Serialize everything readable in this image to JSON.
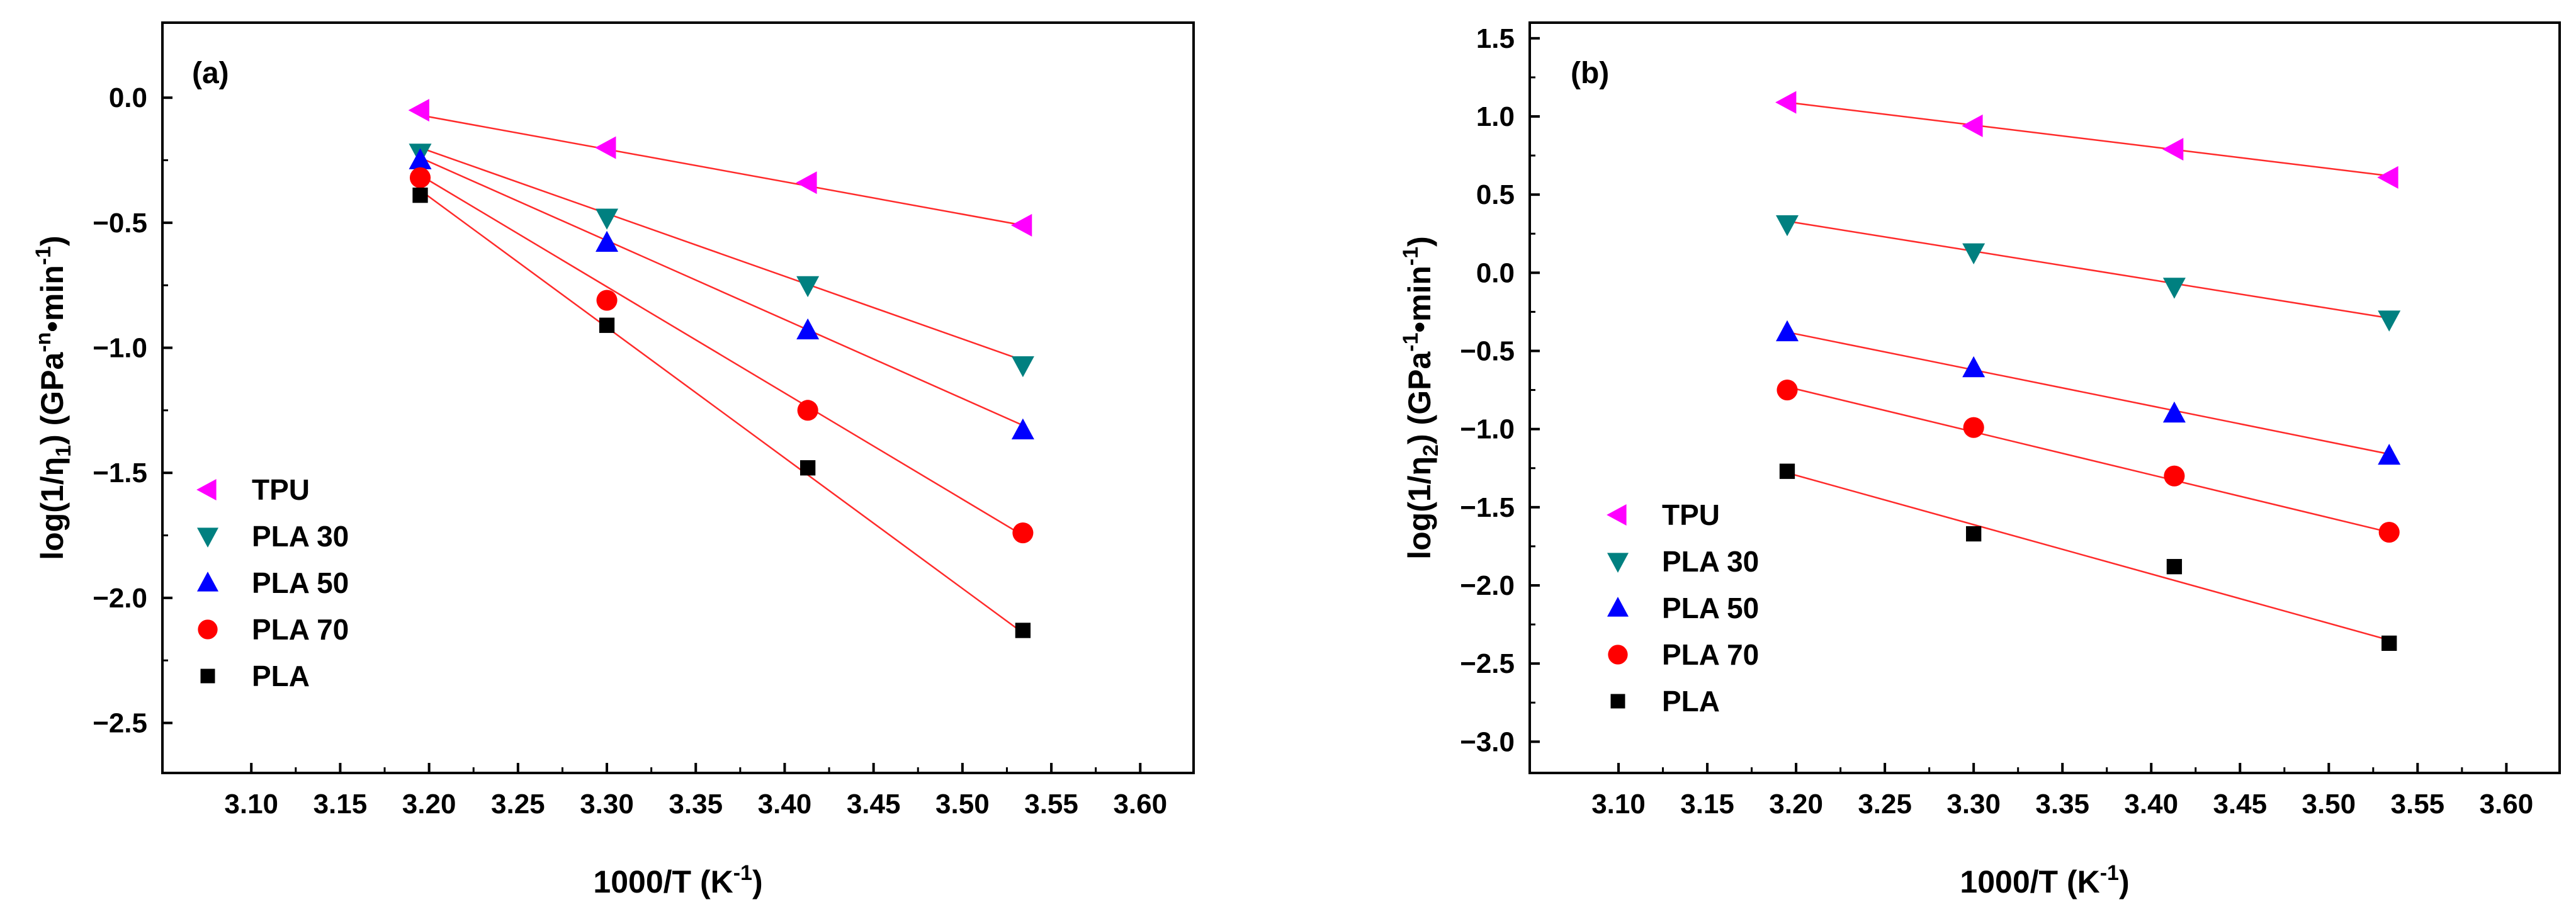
{
  "chart_data": [
    {
      "type": "scatter",
      "panel_label": "(a)",
      "xlabel": "1000/T (K-1)",
      "xlabel_main": "1000/T (K",
      "xlabel_sup": "-1",
      "xlabel_end": ")",
      "ylabel": "log(1/η1) (GPa-n•min-1)",
      "ylabel_main": "log(1/η",
      "ylabel_sub": "1",
      "ylabel_mid": ")  (GPa",
      "ylabel_sup1": "-n",
      "ylabel_mid2": "•min",
      "ylabel_sup2": "-1",
      "ylabel_end": ")",
      "xlim": [
        3.05,
        3.63
      ],
      "ylim": [
        -2.7,
        0.3
      ],
      "xticks": [
        3.1,
        3.15,
        3.2,
        3.25,
        3.3,
        3.35,
        3.4,
        3.45,
        3.5,
        3.55,
        3.6
      ],
      "xtick_labels": [
        "3.10",
        "3.15",
        "3.20",
        "3.25",
        "3.30",
        "3.35",
        "3.40",
        "3.45",
        "3.50",
        "3.55",
        "3.60"
      ],
      "yticks": [
        0.0,
        -0.5,
        -1.0,
        -1.5,
        -2.0,
        -2.5
      ],
      "ytick_labels": [
        "0.0",
        "−0.5",
        "−1.0",
        "−1.5",
        "−2.0",
        "−2.5"
      ],
      "legend_position": "lower-left",
      "x": [
        3.195,
        3.3,
        3.413,
        3.534
      ],
      "series": [
        {
          "name": "TPU",
          "marker": "triangle-left",
          "color": "#ff00ff",
          "values": [
            -0.05,
            -0.2,
            -0.34,
            -0.51
          ],
          "fit": [
            -0.07,
            -0.51
          ]
        },
        {
          "name": "PLA 30",
          "marker": "triangle-down",
          "color": "#008080",
          "values": [
            -0.22,
            -0.48,
            -0.75,
            -1.07
          ],
          "fit": [
            -0.2,
            -1.05
          ]
        },
        {
          "name": "PLA 50",
          "marker": "triangle-up",
          "color": "#0000ff",
          "values": [
            -0.25,
            -0.58,
            -0.93,
            -1.33
          ],
          "fit": [
            -0.24,
            -1.31
          ]
        },
        {
          "name": "PLA 70",
          "marker": "circle",
          "color": "#ff0000",
          "values": [
            -0.32,
            -0.81,
            -1.25,
            -1.74
          ],
          "fit": [
            -0.31,
            -1.75
          ]
        },
        {
          "name": "PLA",
          "marker": "square",
          "color": "#000000",
          "values": [
            -0.39,
            -0.91,
            -1.48,
            -2.13
          ],
          "fit": [
            -0.37,
            -2.14
          ]
        }
      ]
    },
    {
      "type": "scatter",
      "panel_label": "(b)",
      "xlabel": "1000/T (K-1)",
      "xlabel_main": "1000/T (K",
      "xlabel_sup": "-1",
      "xlabel_end": ")",
      "ylabel": "log(1/η2) (GPa-1•min-1)",
      "ylabel_main": "log(1/η",
      "ylabel_sub": "2",
      "ylabel_mid": ")  (GPa",
      "ylabel_sup1": "-1",
      "ylabel_mid2": "•min",
      "ylabel_sup2": "-1",
      "ylabel_end": ")",
      "xlim": [
        3.05,
        3.63
      ],
      "ylim": [
        -3.2,
        1.6
      ],
      "xticks": [
        3.1,
        3.15,
        3.2,
        3.25,
        3.3,
        3.35,
        3.4,
        3.45,
        3.5,
        3.55,
        3.6
      ],
      "xtick_labels": [
        "3.10",
        "3.15",
        "3.20",
        "3.25",
        "3.30",
        "3.35",
        "3.40",
        "3.45",
        "3.50",
        "3.55",
        "3.60"
      ],
      "yticks": [
        1.5,
        1.0,
        0.5,
        0.0,
        -0.5,
        -1.0,
        -1.5,
        -2.0,
        -2.5,
        -3.0
      ],
      "ytick_labels": [
        "1.5",
        "1.0",
        "0.5",
        "0.0",
        "−0.5",
        "−1.0",
        "−1.5",
        "−2.0",
        "−2.5",
        "−3.0"
      ],
      "legend_position": "lower-left",
      "x": [
        3.195,
        3.3,
        3.413,
        3.534
      ],
      "series": [
        {
          "name": "TPU",
          "marker": "triangle-left",
          "color": "#ff00ff",
          "values": [
            1.09,
            0.94,
            0.79,
            0.61
          ],
          "fit": [
            1.09,
            0.62
          ]
        },
        {
          "name": "PLA 30",
          "marker": "triangle-down",
          "color": "#008080",
          "values": [
            0.31,
            0.13,
            -0.09,
            -0.3
          ],
          "fit": [
            0.33,
            -0.29
          ]
        },
        {
          "name": "PLA 50",
          "marker": "triangle-up",
          "color": "#0000ff",
          "values": [
            -0.38,
            -0.61,
            -0.9,
            -1.17
          ],
          "fit": [
            -0.38,
            -1.16
          ]
        },
        {
          "name": "PLA 70",
          "marker": "circle",
          "color": "#ff0000",
          "values": [
            -0.75,
            -0.99,
            -1.3,
            -1.66
          ],
          "fit": [
            -0.73,
            -1.66
          ]
        },
        {
          "name": "PLA",
          "marker": "square",
          "color": "#000000",
          "values": [
            -1.27,
            -1.67,
            -1.88,
            -2.37
          ],
          "fit": [
            -1.28,
            -2.35
          ]
        }
      ]
    }
  ]
}
